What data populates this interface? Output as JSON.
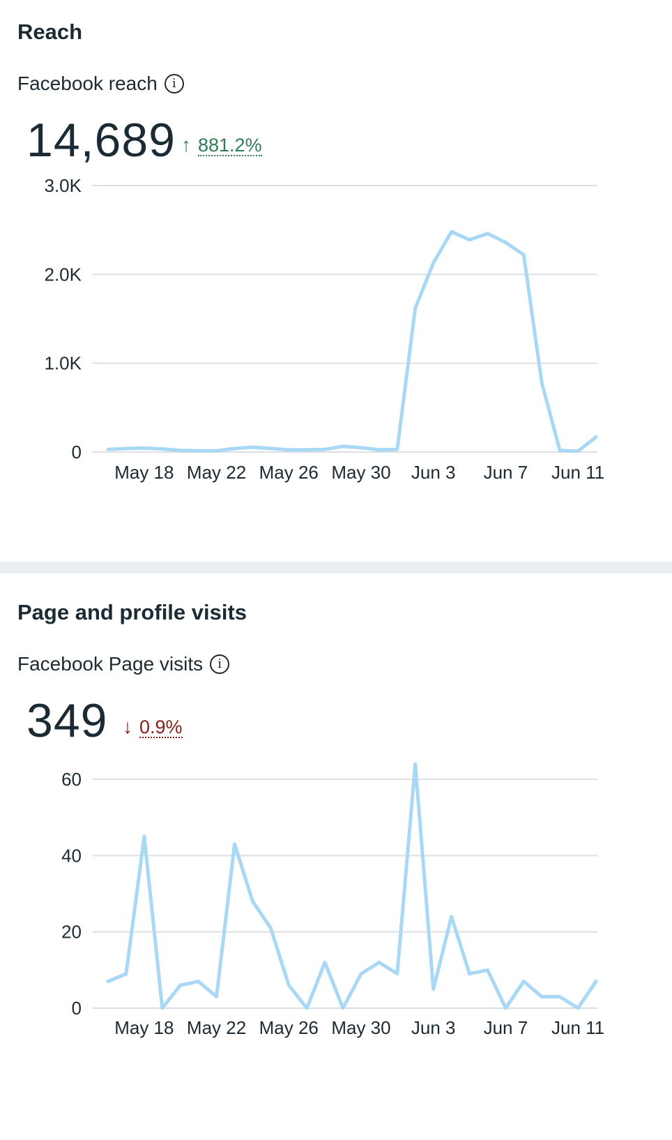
{
  "reach": {
    "section_title": "Reach",
    "metric_label": "Facebook reach",
    "total": "14,689",
    "delta_direction": "up",
    "delta_arrow": "↑",
    "delta": "881.2%",
    "info_icon": "info-icon"
  },
  "visits": {
    "section_title": "Page and profile visits",
    "metric_label": "Facebook Page visits",
    "total": "349",
    "delta_direction": "down",
    "delta_arrow": "↓",
    "delta": "0.9%",
    "info_icon": "info-icon"
  },
  "colors": {
    "line": "#a8d8f5",
    "grid": "#dcdfe3",
    "text": "#1c2b33",
    "delta_up": "#2f7d57",
    "delta_down": "#8a1a1a",
    "divider": "#e9eef3"
  },
  "chart_data": [
    {
      "type": "line",
      "title": "",
      "x_tick_labels": [
        "May 18",
        "May 22",
        "May 26",
        "May 30",
        "Jun 3",
        "Jun 7",
        "Jun 11"
      ],
      "x": [
        "May 16",
        "May 17",
        "May 18",
        "May 19",
        "May 20",
        "May 21",
        "May 22",
        "May 23",
        "May 24",
        "May 25",
        "May 26",
        "May 27",
        "May 28",
        "May 29",
        "May 30",
        "May 31",
        "Jun 1",
        "Jun 2",
        "Jun 3",
        "Jun 4",
        "Jun 5",
        "Jun 6",
        "Jun 7",
        "Jun 8",
        "Jun 9",
        "Jun 10",
        "Jun 11",
        "Jun 12"
      ],
      "series": [
        {
          "values": [
            30,
            40,
            45,
            35,
            20,
            15,
            15,
            40,
            55,
            40,
            25,
            25,
            30,
            65,
            50,
            25,
            30,
            1620,
            2130,
            2480,
            2390,
            2460,
            2360,
            2220,
            780,
            20,
            10,
            170
          ]
        }
      ],
      "y_ticks": [
        0,
        1000,
        2000,
        3000
      ],
      "y_tick_labels": [
        "0",
        "1.0K",
        "2.0K",
        "3.0K"
      ],
      "ylim": [
        0,
        3000
      ],
      "grid": true
    },
    {
      "type": "line",
      "title": "",
      "x_tick_labels": [
        "May 18",
        "May 22",
        "May 26",
        "May 30",
        "Jun 3",
        "Jun 7",
        "Jun 11"
      ],
      "x": [
        "May 16",
        "May 17",
        "May 18",
        "May 19",
        "May 20",
        "May 21",
        "May 22",
        "May 23",
        "May 24",
        "May 25",
        "May 26",
        "May 27",
        "May 28",
        "May 29",
        "May 30",
        "May 31",
        "Jun 1",
        "Jun 2",
        "Jun 3",
        "Jun 4",
        "Jun 5",
        "Jun 6",
        "Jun 7",
        "Jun 8",
        "Jun 9",
        "Jun 10",
        "Jun 11",
        "Jun 12"
      ],
      "series": [
        {
          "values": [
            7,
            9,
            45,
            0,
            6,
            7,
            3,
            43,
            28,
            21,
            6,
            0,
            12,
            0,
            9,
            12,
            9,
            64,
            5,
            24,
            9,
            10,
            0,
            7,
            3,
            3,
            0,
            7
          ]
        }
      ],
      "y_ticks": [
        0,
        20,
        40,
        60
      ],
      "y_tick_labels": [
        "0",
        "20",
        "40",
        "60"
      ],
      "ylim": [
        0,
        60
      ],
      "grid": true
    }
  ]
}
